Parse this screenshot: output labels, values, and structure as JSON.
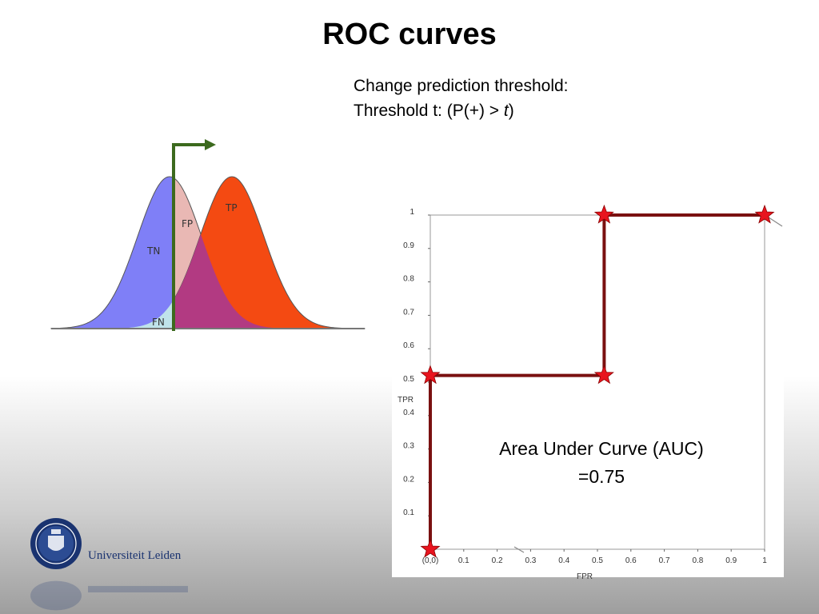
{
  "slide": {
    "title": "ROC curves",
    "threshold_line1": "Change prediction threshold:",
    "threshold_line2_prefix": "Threshold t:  (P(+) > ",
    "threshold_var": "t",
    "threshold_line2_suffix": ")"
  },
  "distributions": {
    "labels": {
      "tn": "TN",
      "fp": "FP",
      "tp": "TP",
      "fn": "FN"
    },
    "colors": {
      "negative": "#7f7ff7",
      "positive": "#f44a12",
      "overlap": "#b23a82",
      "fp": "#e9b8b4",
      "fn": "#bfe3ea",
      "threshold": "#3c6a1e"
    }
  },
  "chart_data": {
    "type": "line",
    "xlabel": "FPR",
    "ylabel": "TPR",
    "xlim": [
      0,
      1
    ],
    "ylim": [
      0,
      1
    ],
    "x_ticks": [
      "(0,0)",
      "0.1",
      "0.2",
      "0.3",
      "0.4",
      "0.5",
      "0.6",
      "0.7",
      "0.8",
      "0.9",
      "1"
    ],
    "y_ticks": [
      "0.1",
      "0.2",
      "0.3",
      "0.4",
      "0.5",
      "0.6",
      "0.7",
      "0.8",
      "0.9",
      "1"
    ],
    "series": [
      {
        "x": [
          0,
          0,
          0.52,
          0.52,
          1
        ],
        "y": [
          0,
          0.52,
          0.52,
          1.0,
          1.0
        ]
      }
    ],
    "annotation_line1": "Area Under Curve (AUC)",
    "annotation_line2": "=0.75",
    "line_color": "#7a1010",
    "marker_color": "#e8141e"
  },
  "footer": {
    "university": "Universiteit Leiden"
  }
}
